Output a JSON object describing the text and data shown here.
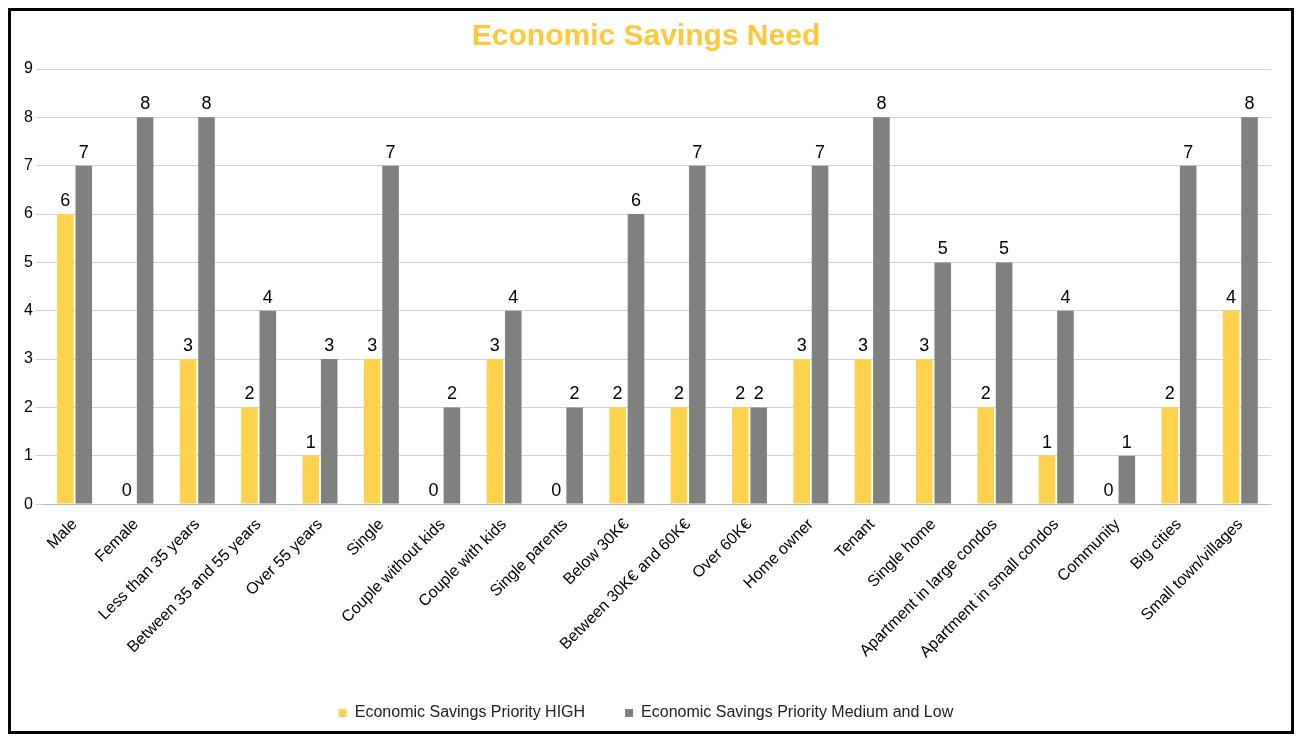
{
  "chart_data": {
    "type": "bar",
    "title": "Economic Savings Need",
    "categories": [
      "Male",
      "Female",
      "Less than 35 years",
      "Between 35 and 55 years",
      "Over 55 years",
      "Single",
      "Couple without kids",
      "Couple with kids",
      "Single parents",
      "Below 30K€",
      "Between 30K€ and 60K€",
      "Over 60K€",
      "Home owner",
      "Tenant",
      "Single home",
      "Apartment in large condos",
      "Apartment in small condos",
      "Community",
      "Big cities",
      "Small town/villages"
    ],
    "series": [
      {
        "name": "Economic Savings Priority HIGH",
        "color": "#ffd24d",
        "values": [
          6,
          0,
          3,
          2,
          1,
          3,
          0,
          3,
          0,
          2,
          2,
          2,
          3,
          3,
          3,
          2,
          1,
          0,
          2,
          4
        ]
      },
      {
        "name": "Economic Savings Priority Medium and Low",
        "color": "#808080",
        "values": [
          7,
          8,
          8,
          4,
          3,
          7,
          2,
          4,
          2,
          6,
          7,
          2,
          7,
          8,
          5,
          5,
          4,
          1,
          7,
          8
        ]
      }
    ],
    "ylim": [
      0,
      9
    ],
    "yticks": [
      0,
      1,
      2,
      3,
      4,
      5,
      6,
      7,
      8,
      9
    ],
    "grid": "y",
    "legend": "bottom",
    "data_labels": true
  }
}
